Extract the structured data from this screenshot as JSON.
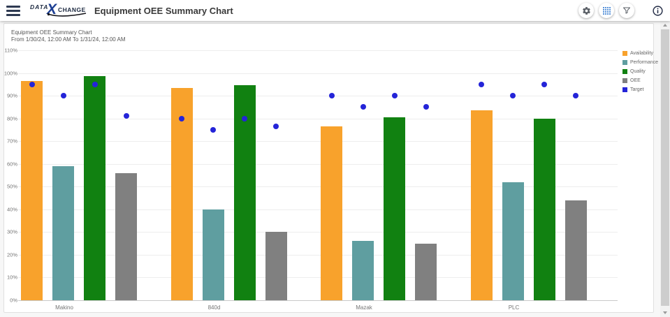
{
  "header": {
    "title": "Equipment OEE Summary Chart",
    "logo": {
      "word_left": "DATA",
      "letter": "X",
      "word_right": "CHANGE"
    }
  },
  "chart_data": {
    "type": "bar",
    "title": "Equipment OEE Summary Chart",
    "subtitle": "From 1/30/24, 12:00 AM To 1/31/24, 12:00 AM",
    "categories": [
      "Makino",
      "840d",
      "Mazak",
      "PLC"
    ],
    "series": [
      {
        "name": "Availability",
        "color": "#F8A22C",
        "values": [
          96.5,
          93.5,
          76.5,
          83.5
        ]
      },
      {
        "name": "Performance",
        "color": "#5F9EA0",
        "values": [
          59,
          40,
          26,
          52
        ]
      },
      {
        "name": "Quality",
        "color": "#118111",
        "values": [
          98.5,
          94.5,
          80.5,
          80
        ]
      },
      {
        "name": "OEE",
        "color": "#808080",
        "values": [
          56,
          30,
          25,
          44
        ]
      }
    ],
    "target": {
      "name": "Target",
      "color": "#2424D8",
      "values": [
        [
          95,
          90,
          95,
          81
        ],
        [
          80,
          75,
          80,
          76.5
        ],
        [
          90,
          85,
          90,
          85
        ],
        [
          95,
          90,
          95,
          90
        ]
      ]
    },
    "ylim": [
      0,
      110
    ],
    "yticks": [
      "0%",
      "10%",
      "20%",
      "30%",
      "40%",
      "50%",
      "60%",
      "70%",
      "80%",
      "90%",
      "100%",
      "110%"
    ],
    "legend_position": "top-right",
    "grid": true
  }
}
